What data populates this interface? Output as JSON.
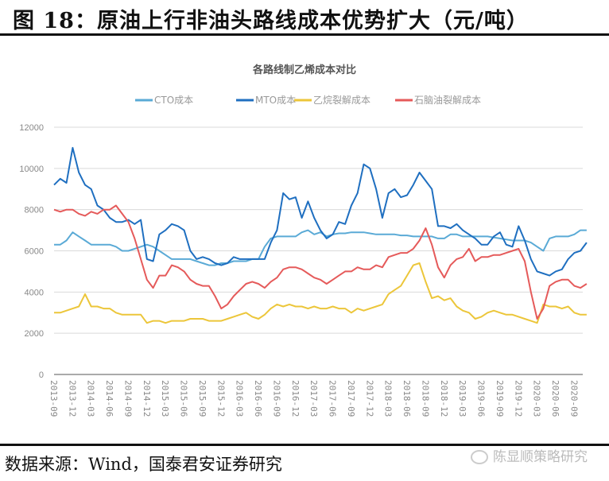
{
  "figure_title": "图 18：原油上行非油头路线成本优势扩大（元/吨）",
  "source": "数据来源：Wind，国泰君安证券研究",
  "watermark": "陈显顺策略研究",
  "chart_data": {
    "type": "line",
    "title": "各路线制乙烯成本对比",
    "xlabel": "",
    "ylabel": "",
    "ylim": [
      0,
      12000
    ],
    "yticks": [
      "0",
      "2000",
      "4000",
      "6000",
      "8000",
      "10000",
      "12000"
    ],
    "grid": true,
    "legend_position": "top",
    "x_start": "2013-09",
    "x_frequency": "monthly",
    "xticks": [
      "2013-09",
      "2013-12",
      "2014-03",
      "2014-06",
      "2014-09",
      "2014-12",
      "2015-03",
      "2015-06",
      "2015-09",
      "2015-12",
      "2016-03",
      "2016-06",
      "2016-09",
      "2016-12",
      "2017-03",
      "2017-06",
      "2017-09",
      "2017-12",
      "2018-03",
      "2018-06",
      "2018-09",
      "2018-12",
      "2019-03",
      "2019-06",
      "2019-09",
      "2019-12",
      "2020-03",
      "2020-06",
      "2020-09"
    ],
    "series": [
      {
        "name": "CTO成本",
        "color": "#5aaad6",
        "values": [
          6300,
          6300,
          6500,
          6900,
          6700,
          6500,
          6300,
          6300,
          6300,
          6300,
          6200,
          6000,
          6000,
          6100,
          6200,
          6300,
          6200,
          6000,
          5800,
          5600,
          5600,
          5600,
          5600,
          5500,
          5400,
          5300,
          5300,
          5400,
          5400,
          5500,
          5500,
          5500,
          5600,
          5600,
          6200,
          6600,
          6700,
          6700,
          6700,
          6700,
          6900,
          7000,
          6800,
          6900,
          6700,
          6800,
          6850,
          6850,
          6900,
          6900,
          6900,
          6850,
          6800,
          6800,
          6800,
          6800,
          6750,
          6750,
          6700,
          6700,
          6700,
          6700,
          6600,
          6600,
          6800,
          6800,
          6700,
          6700,
          6700,
          6700,
          6700,
          6650,
          6600,
          6550,
          6500,
          6500,
          6500,
          6400,
          6200,
          6000,
          6600,
          6700,
          6700,
          6700,
          6800,
          7000,
          7000
        ]
      },
      {
        "name": "MTO成本",
        "color": "#1f6fc0",
        "values": [
          9200,
          9500,
          9300,
          11000,
          9800,
          9200,
          9000,
          8200,
          8000,
          7600,
          7400,
          7400,
          7500,
          7300,
          7500,
          5600,
          5500,
          6800,
          7000,
          7300,
          7200,
          7000,
          6000,
          5600,
          5700,
          5600,
          5400,
          5300,
          5400,
          5700,
          5600,
          5600,
          5600,
          5600,
          5600,
          6400,
          7000,
          8800,
          8500,
          8600,
          7600,
          8400,
          7600,
          7000,
          6600,
          6800,
          7400,
          7300,
          8200,
          8800,
          10200,
          10000,
          9000,
          7600,
          8800,
          9000,
          8600,
          8700,
          9200,
          9800,
          9400,
          9000,
          7200,
          7200,
          7100,
          7300,
          7000,
          6800,
          6600,
          6300,
          6300,
          6700,
          6900,
          6300,
          6200,
          7200,
          6500,
          5600,
          5000,
          4900,
          4800,
          5000,
          5100,
          5600,
          5900,
          6000,
          6400
        ]
      },
      {
        "name": "乙烷裂解成本",
        "color": "#ecc63a",
        "values": [
          3000,
          3000,
          3100,
          3200,
          3300,
          3900,
          3300,
          3300,
          3200,
          3200,
          3000,
          2900,
          2900,
          2900,
          2900,
          2500,
          2600,
          2600,
          2500,
          2600,
          2600,
          2600,
          2700,
          2700,
          2700,
          2600,
          2600,
          2600,
          2700,
          2800,
          2900,
          3000,
          2800,
          2700,
          2900,
          3200,
          3400,
          3300,
          3400,
          3300,
          3300,
          3200,
          3300,
          3200,
          3200,
          3300,
          3200,
          3200,
          3000,
          3200,
          3100,
          3200,
          3300,
          3400,
          3900,
          4100,
          4300,
          4800,
          5300,
          5400,
          4500,
          3700,
          3800,
          3600,
          3700,
          3300,
          3100,
          3000,
          2700,
          2800,
          3000,
          3100,
          3000,
          2900,
          2900,
          2800,
          2700,
          2600,
          2500,
          3400,
          3300,
          3300,
          3200,
          3300,
          3000,
          2900,
          2900
        ]
      },
      {
        "name": "石脑油裂解成本",
        "color": "#e55a5a",
        "values": [
          8000,
          7900,
          8000,
          8000,
          7800,
          7700,
          7900,
          7800,
          8000,
          8000,
          8200,
          7800,
          7400,
          6600,
          5600,
          4600,
          4200,
          4800,
          4800,
          5300,
          5200,
          5000,
          4600,
          4400,
          4300,
          4300,
          3800,
          3200,
          3400,
          3800,
          4100,
          4400,
          4500,
          4400,
          4200,
          4500,
          4700,
          5100,
          5200,
          5200,
          5100,
          4900,
          4700,
          4600,
          4400,
          4600,
          4800,
          5000,
          5000,
          5200,
          5100,
          5100,
          5300,
          5200,
          5700,
          5800,
          5900,
          5900,
          6100,
          6500,
          7100,
          6300,
          5200,
          4700,
          5300,
          5600,
          5700,
          6100,
          5500,
          5700,
          5700,
          5800,
          5800,
          5900,
          6000,
          6100,
          5500,
          4000,
          2700,
          3200,
          4300,
          4500,
          4600,
          4600,
          4300,
          4200,
          4400
        ]
      }
    ]
  }
}
